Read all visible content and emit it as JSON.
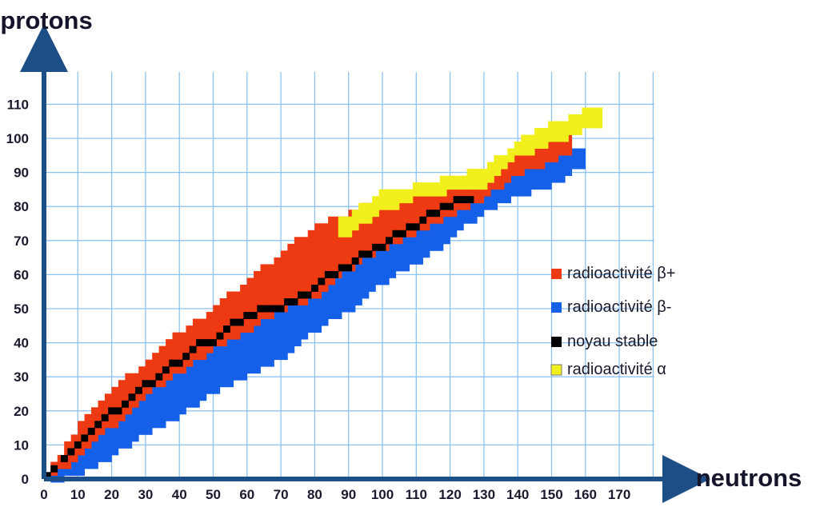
{
  "chart_data": {
    "type": "heatmap",
    "title": "",
    "xlabel": "neutrons",
    "ylabel": "protons",
    "x_ticks": [
      0,
      10,
      20,
      30,
      40,
      50,
      60,
      70,
      80,
      90,
      100,
      110,
      120,
      130,
      140,
      150,
      160,
      170
    ],
    "y_ticks": [
      0,
      10,
      20,
      30,
      40,
      50,
      60,
      70,
      80,
      90,
      100,
      110
    ],
    "xlim": [
      0,
      180
    ],
    "ylim": [
      0,
      118
    ],
    "grid": true,
    "legend_position": "right",
    "series": [
      {
        "name": "radioactivité β+",
        "color": "#ee3a12",
        "bands": [
          {
            "n": 3,
            "z_min": 3,
            "z_max": 5
          },
          {
            "n": 10,
            "z_min": 8,
            "z_max": 15
          },
          {
            "n": 20,
            "z_min": 17,
            "z_max": 27
          },
          {
            "n": 30,
            "z_min": 26,
            "z_max": 33
          },
          {
            "n": 40,
            "z_min": 33,
            "z_max": 43
          },
          {
            "n": 50,
            "z_min": 40,
            "z_max": 50
          },
          {
            "n": 60,
            "z_min": 45,
            "z_max": 58
          },
          {
            "n": 70,
            "z_min": 51,
            "z_max": 66
          },
          {
            "n": 80,
            "z_min": 55,
            "z_max": 74
          },
          {
            "n": 90,
            "z_min": 63,
            "z_max": 78
          },
          {
            "n": 100,
            "z_min": 69,
            "z_max": 82
          },
          {
            "n": 110,
            "z_min": 74,
            "z_max": 84
          },
          {
            "n": 120,
            "z_min": 79,
            "z_max": 86
          },
          {
            "n": 130,
            "z_min": 84,
            "z_max": 86
          },
          {
            "n": 140,
            "z_min": 91,
            "z_max": 96
          },
          {
            "n": 150,
            "z_min": 95,
            "z_max": 100
          },
          {
            "n": 155,
            "z_min": 97,
            "z_max": 102
          }
        ]
      },
      {
        "name": "radioactivité β-",
        "color": "#1560e8",
        "bands": [
          {
            "n": 3,
            "z_min": 1,
            "z_max": 2
          },
          {
            "n": 10,
            "z_min": 3,
            "z_max": 8
          },
          {
            "n": 20,
            "z_min": 8,
            "z_max": 17
          },
          {
            "n": 30,
            "z_min": 15,
            "z_max": 26
          },
          {
            "n": 40,
            "z_min": 20,
            "z_max": 33
          },
          {
            "n": 50,
            "z_min": 27,
            "z_max": 40
          },
          {
            "n": 60,
            "z_min": 32,
            "z_max": 45
          },
          {
            "n": 70,
            "z_min": 37,
            "z_max": 51
          },
          {
            "n": 80,
            "z_min": 45,
            "z_max": 55
          },
          {
            "n": 90,
            "z_min": 51,
            "z_max": 63
          },
          {
            "n": 100,
            "z_min": 59,
            "z_max": 69
          },
          {
            "n": 110,
            "z_min": 65,
            "z_max": 74
          },
          {
            "n": 120,
            "z_min": 72,
            "z_max": 79
          },
          {
            "n": 130,
            "z_min": 80,
            "z_max": 84
          },
          {
            "n": 140,
            "z_min": 85,
            "z_max": 91
          },
          {
            "n": 150,
            "z_min": 88,
            "z_max": 95
          },
          {
            "n": 160,
            "z_min": 94,
            "z_max": 98
          }
        ]
      },
      {
        "name": "noyau stable",
        "color": "#000000",
        "points": [
          [
            1,
            1
          ],
          [
            3,
            3
          ],
          [
            6,
            6
          ],
          [
            8,
            8
          ],
          [
            10,
            10
          ],
          [
            12,
            12
          ],
          [
            14,
            14
          ],
          [
            16,
            16
          ],
          [
            18,
            18
          ],
          [
            20,
            20
          ],
          [
            22,
            20
          ],
          [
            24,
            22
          ],
          [
            26,
            24
          ],
          [
            28,
            26
          ],
          [
            30,
            28
          ],
          [
            32,
            28
          ],
          [
            34,
            30
          ],
          [
            36,
            32
          ],
          [
            38,
            34
          ],
          [
            40,
            34
          ],
          [
            42,
            36
          ],
          [
            44,
            38
          ],
          [
            46,
            40
          ],
          [
            48,
            40
          ],
          [
            50,
            40
          ],
          [
            52,
            42
          ],
          [
            54,
            44
          ],
          [
            56,
            46
          ],
          [
            58,
            46
          ],
          [
            60,
            48
          ],
          [
            62,
            48
          ],
          [
            64,
            50
          ],
          [
            66,
            50
          ],
          [
            68,
            50
          ],
          [
            70,
            50
          ],
          [
            72,
            52
          ],
          [
            74,
            52
          ],
          [
            76,
            54
          ],
          [
            78,
            54
          ],
          [
            80,
            56
          ],
          [
            82,
            58
          ],
          [
            84,
            60
          ],
          [
            86,
            60
          ],
          [
            88,
            62
          ],
          [
            90,
            62
          ],
          [
            92,
            64
          ],
          [
            94,
            66
          ],
          [
            96,
            66
          ],
          [
            98,
            68
          ],
          [
            100,
            68
          ],
          [
            102,
            70
          ],
          [
            104,
            72
          ],
          [
            106,
            72
          ],
          [
            108,
            74
          ],
          [
            110,
            74
          ],
          [
            112,
            76
          ],
          [
            114,
            78
          ],
          [
            116,
            78
          ],
          [
            118,
            80
          ],
          [
            120,
            80
          ],
          [
            122,
            82
          ],
          [
            124,
            82
          ],
          [
            126,
            82
          ]
        ]
      },
      {
        "name": "radioactivité  α",
        "color": "#f2f01c",
        "bands": [
          {
            "n": 88,
            "z_min": 72,
            "z_max": 76
          },
          {
            "n": 100,
            "z_min": 80,
            "z_max": 84
          },
          {
            "n": 110,
            "z_min": 84,
            "z_max": 86
          },
          {
            "n": 120,
            "z_min": 86,
            "z_max": 89
          },
          {
            "n": 130,
            "z_min": 86,
            "z_max": 91
          },
          {
            "n": 140,
            "z_min": 96,
            "z_max": 99
          },
          {
            "n": 150,
            "z_min": 100,
            "z_max": 104
          },
          {
            "n": 160,
            "z_min": 104,
            "z_max": 108
          },
          {
            "n": 165,
            "z_min": 106,
            "z_max": 110
          }
        ]
      }
    ]
  }
}
